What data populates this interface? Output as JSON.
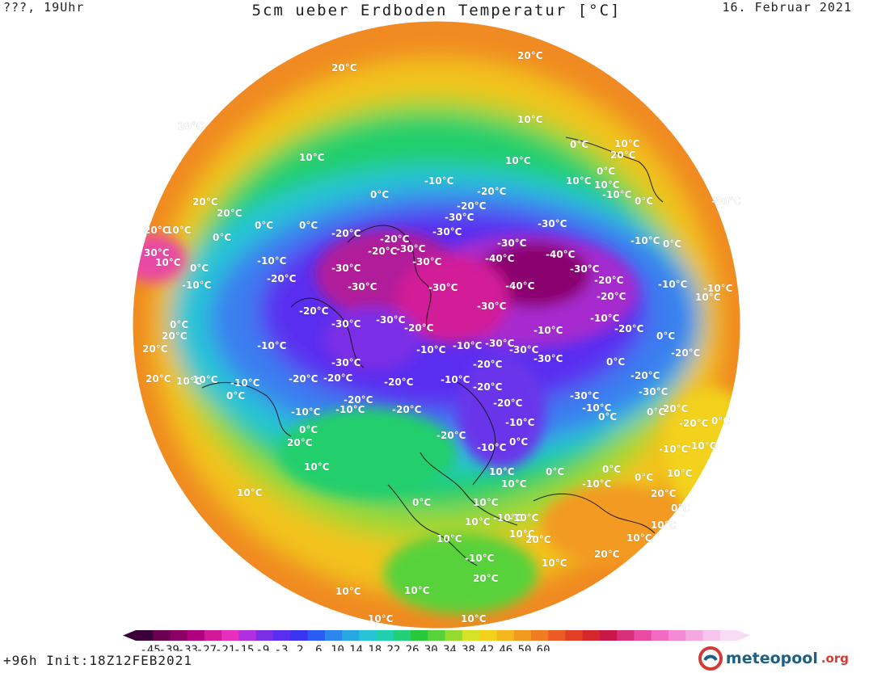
{
  "header": {
    "left": "???, 19Uhr",
    "title": "5cm ueber Erdboden Temperatur [°C]",
    "date": "16. Februar 2021"
  },
  "colors": {
    "very_cold": "#8a008a",
    "cold": "#3a2fd8",
    "cool": "#26b2e0",
    "mild": "#1fcf6a",
    "warm": "#f2d21a",
    "hot": "#f08a22"
  },
  "map": {
    "projection": "polar stereographic (northern hemisphere)",
    "contour_labels": [
      "20°C",
      "20°C",
      "20°C",
      "10°C",
      "10°C",
      "0°C",
      "10°C",
      "20°C",
      "10°C",
      "0°C",
      "10°C",
      "10°C",
      "0°C",
      "-20°C",
      "-10°C",
      "0°C",
      "-10°C",
      "-20°C",
      "-30°C",
      "-30°C",
      "20°C",
      "10°C",
      "20°C",
      "20°C",
      "0°C",
      "0°C",
      "0°C",
      "-20°C",
      "-20°C",
      "-30°C",
      "-30°C",
      "-20°C",
      "-30°C",
      "-30°C",
      "-40°C",
      "-40°C",
      "-30°C",
      "-10°C",
      "0°C",
      "30°C",
      "10°C",
      "0°C",
      "-10°C",
      "-20°C",
      "-30°C",
      "-30°C",
      "-30°C",
      "-40°C",
      "-30°C",
      "-20°C",
      "-10°C",
      "-10°C",
      "-10°C",
      "-20°C",
      "-20°C",
      "-30°C",
      "-30°C",
      "-30°C",
      "-20°C",
      "-10°C",
      "-10°C",
      "-20°C",
      "0°C",
      "0°C",
      "20°C",
      "-10°C",
      "-10°C",
      "-30°C",
      "-30°C",
      "-30°C",
      "-30°C",
      "-20°C",
      "-20°C",
      "10°C",
      "-20°C",
      "-20°C",
      "-20°C",
      "-10°C",
      "-10°C",
      "0°C",
      "-20°C",
      "-20°C",
      "-20°C",
      "-10°C",
      "0°C",
      "-10°C",
      "-20°C",
      "-30°C",
      "-20°C",
      "-10°C",
      "-30°C",
      "-10°C",
      "0°C",
      "-10°C",
      "0°C",
      "-20°C",
      "-20°C",
      "-10°C",
      "0°C",
      "10°C",
      "10°C",
      "-10°C",
      "-10°C",
      "0°C",
      "0°C",
      "-10°C",
      "-20°C",
      "0°C",
      "10°C",
      "10°C",
      "20°C",
      "0°C",
      "0°C",
      "0°C",
      "10°C",
      "-10°C",
      "-10°C",
      "0°C",
      "10°C",
      "10°C",
      "10°C",
      "20°C",
      "10°C",
      "10°C",
      "-10°C",
      "10°C",
      "20°C",
      "20°C",
      "10°C",
      "10°C",
      "10°C",
      "10°C",
      "10°C",
      "20°C",
      "20°C",
      "10°C",
      "20°C",
      "10°C",
      "20°C"
    ]
  },
  "legend": {
    "ticks": [
      "-45",
      "-39",
      "-33",
      "-27",
      "-21",
      "-15",
      "-9",
      "-3",
      "2",
      "6",
      "10",
      "14",
      "18",
      "22",
      "26",
      "30",
      "34",
      "38",
      "42",
      "46",
      "50",
      "60"
    ],
    "colors": [
      "#3c0038",
      "#6a004f",
      "#8c0066",
      "#b0007f",
      "#d21a98",
      "#e62fbd",
      "#b030e0",
      "#7a2ee6",
      "#5a2ef0",
      "#3a34f0",
      "#2b5cf2",
      "#2b86ee",
      "#28a8e2",
      "#27c4d6",
      "#1fcfae",
      "#20cf78",
      "#27c83a",
      "#58d23a",
      "#96dc2e",
      "#d6e226",
      "#f2d21a",
      "#f4b81e",
      "#f29a20",
      "#f07c22",
      "#ea5c24",
      "#e23e26",
      "#d6262e",
      "#c81848",
      "#d8307a",
      "#e84aa4",
      "#f06cc2",
      "#f48ad4",
      "#f4a8e0",
      "#f6c4ec",
      "#f8dcf4"
    ]
  },
  "footer": {
    "left": "+96h Init:18Z12FEB2021",
    "brand": "meteopool",
    "brand_tld": ".org"
  }
}
